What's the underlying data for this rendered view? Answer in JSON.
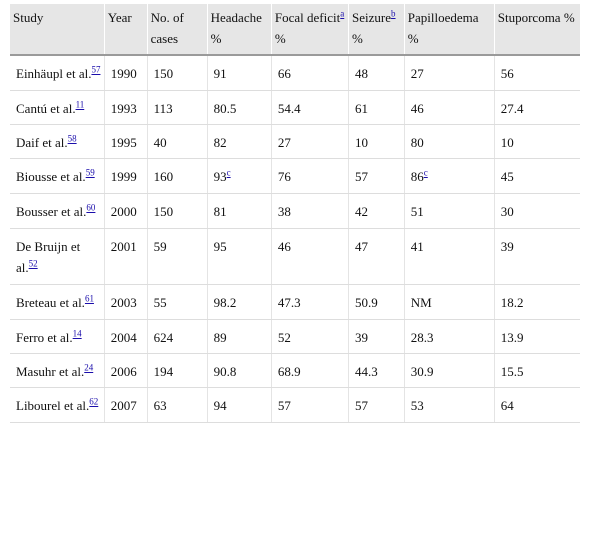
{
  "table": {
    "headers": [
      {
        "text": "Study",
        "sup": ""
      },
      {
        "text": "Year",
        "sup": ""
      },
      {
        "text": "No. of cases",
        "sup": ""
      },
      {
        "text": "Headache %",
        "sup": ""
      },
      {
        "text": "Focal deficit",
        "sup": "a",
        "after": " %"
      },
      {
        "text": "Seizure",
        "sup": "b",
        "after": " %"
      },
      {
        "text": "Papilloedema %",
        "sup": ""
      },
      {
        "text": "Stuporcoma %",
        "sup": ""
      }
    ],
    "rows": [
      {
        "study": "Einhäupl et al.",
        "ref": "57",
        "year": "1990",
        "cases": "150",
        "headache": "91",
        "headache_sup": "",
        "focal": "66",
        "seizure": "48",
        "papilloedema": "27",
        "papilloedema_sup": "",
        "stupor": "56"
      },
      {
        "study": "Cantú et al.",
        "ref": "11",
        "year": "1993",
        "cases": "113",
        "headache": "80.5",
        "headache_sup": "",
        "focal": "54.4",
        "seizure": "61",
        "papilloedema": "46",
        "papilloedema_sup": "",
        "stupor": "27.4"
      },
      {
        "study": "Daif et al.",
        "ref": "58",
        "year": "1995",
        "cases": "40",
        "headache": "82",
        "headache_sup": "",
        "focal": "27",
        "seizure": "10",
        "papilloedema": "80",
        "papilloedema_sup": "",
        "stupor": "10"
      },
      {
        "study": "Biousse et al.",
        "ref": "59",
        "year": "1999",
        "cases": "160",
        "headache": "93",
        "headache_sup": "c",
        "focal": "76",
        "seizure": "57",
        "papilloedema": "86",
        "papilloedema_sup": "c",
        "stupor": "45"
      },
      {
        "study": "Bousser et al.",
        "ref": "60",
        "year": "2000",
        "cases": "150",
        "headache": "81",
        "headache_sup": "",
        "focal": "38",
        "seizure": "42",
        "papilloedema": "51",
        "papilloedema_sup": "",
        "stupor": "30"
      },
      {
        "study": "De Bruijn et al.",
        "ref": "52",
        "year": "2001",
        "cases": "59",
        "headache": "95",
        "headache_sup": "",
        "focal": "46",
        "seizure": "47",
        "papilloedema": "41",
        "papilloedema_sup": "",
        "stupor": "39"
      },
      {
        "study": "Breteau et al.",
        "ref": "61",
        "year": "2003",
        "cases": "55",
        "headache": "98.2",
        "headache_sup": "",
        "focal": "47.3",
        "seizure": "50.9",
        "papilloedema": "NM",
        "papilloedema_sup": "",
        "stupor": "18.2"
      },
      {
        "study": "Ferro et al.",
        "ref": "14",
        "year": "2004",
        "cases": "624",
        "headache": "89",
        "headache_sup": "",
        "focal": "52",
        "seizure": "39",
        "papilloedema": "28.3",
        "papilloedema_sup": "",
        "stupor": "13.9"
      },
      {
        "study": "Masuhr et al.",
        "ref": "24",
        "year": "2006",
        "cases": "194",
        "headache": "90.8",
        "headache_sup": "",
        "focal": "68.9",
        "seizure": "44.3",
        "papilloedema": "30.9",
        "papilloedema_sup": "",
        "stupor": "15.5"
      },
      {
        "study": "Libourel et al.",
        "ref": "62",
        "year": "2007",
        "cases": "63",
        "headache": "94",
        "headache_sup": "",
        "focal": "57",
        "seizure": "57",
        "papilloedema": "53",
        "papilloedema_sup": "",
        "stupor": "64"
      }
    ]
  }
}
